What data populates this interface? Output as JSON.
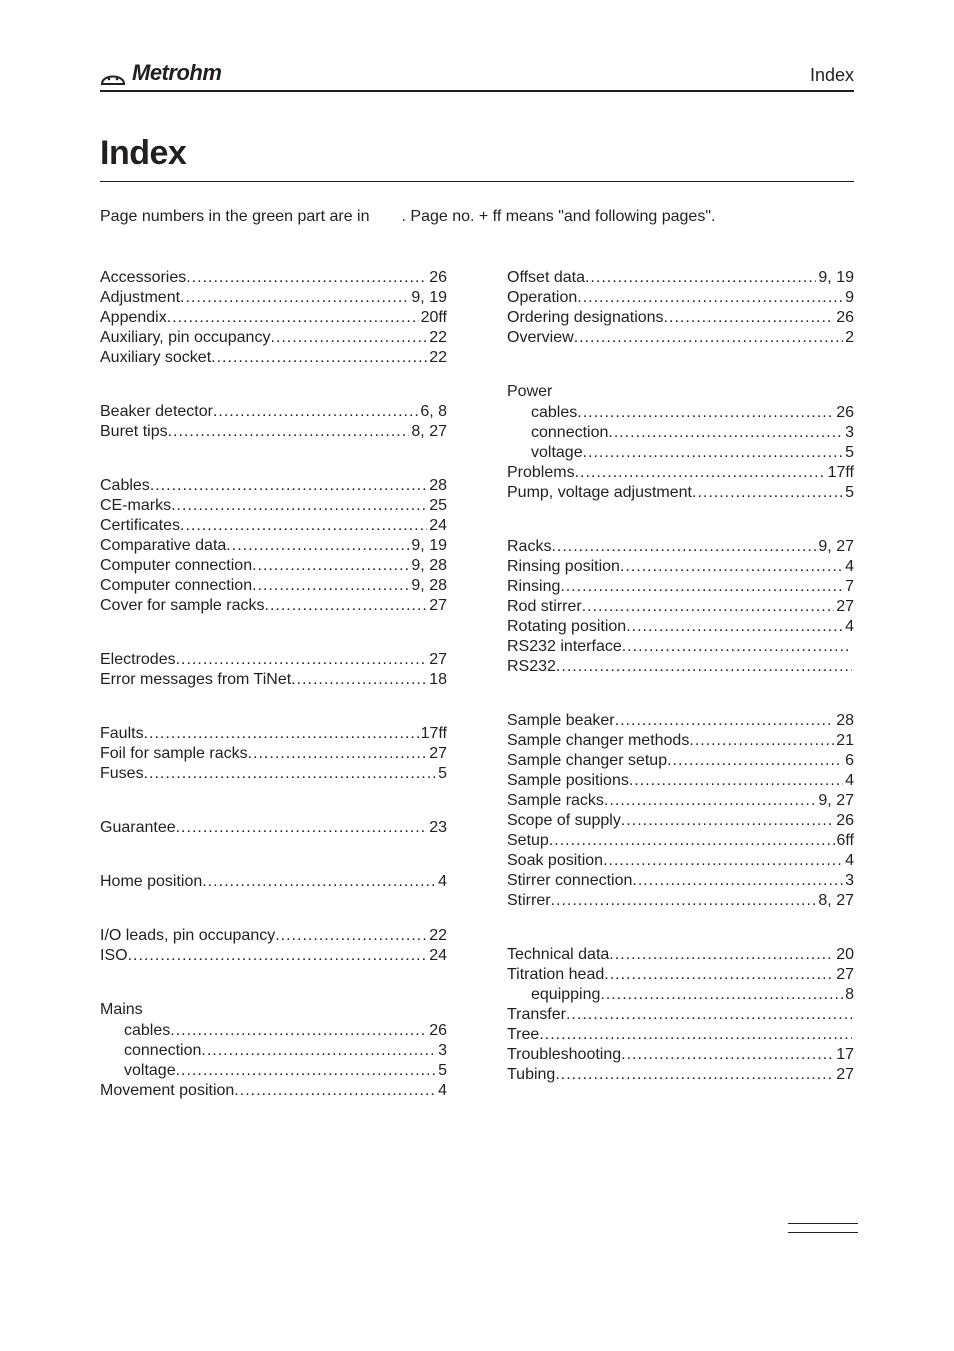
{
  "header": {
    "brand_name": "Metrohm",
    "section_label": "Index"
  },
  "title": "Index",
  "intro": {
    "left": "Page numbers in the green part are in",
    "right": ". Page no. + ff means \"and following pages\"."
  },
  "left_groups": [
    {
      "heading": null,
      "entries": [
        {
          "label": "Accessories",
          "pages": "26",
          "indent": false
        },
        {
          "label": "Adjustment",
          "pages": "9, 19",
          "indent": false
        },
        {
          "label": "Appendix",
          "pages": "20ff",
          "indent": false
        },
        {
          "label": "Auxiliary, pin occupancy",
          "pages": "22",
          "indent": false
        },
        {
          "label": "Auxiliary socket",
          "pages": "22",
          "indent": false
        }
      ]
    },
    {
      "heading": null,
      "entries": [
        {
          "label": "Beaker detector",
          "pages": "6, 8",
          "indent": false
        },
        {
          "label": "Buret tips",
          "pages": "8, 27",
          "indent": false
        }
      ]
    },
    {
      "heading": null,
      "entries": [
        {
          "label": "Cables",
          "pages": "28",
          "indent": false
        },
        {
          "label": "CE-marks",
          "pages": "25",
          "indent": false
        },
        {
          "label": "Certificates",
          "pages": "24",
          "indent": false
        },
        {
          "label": "Comparative data",
          "pages": "9, 19",
          "indent": false
        },
        {
          "label": "Computer connection",
          "pages": "9, 28",
          "indent": false
        },
        {
          "label": "Computer connection",
          "pages": "9, 28",
          "indent": false
        },
        {
          "label": "Cover for sample racks",
          "pages": "27",
          "indent": false
        }
      ]
    },
    {
      "heading": null,
      "entries": [
        {
          "label": "Electrodes",
          "pages": "27",
          "indent": false
        },
        {
          "label": "Error messages from TiNet",
          "pages": "18",
          "indent": false
        }
      ]
    },
    {
      "heading": null,
      "entries": [
        {
          "label": "Faults",
          "pages": "17ff",
          "indent": false
        },
        {
          "label": "Foil for sample racks",
          "pages": "27",
          "indent": false
        },
        {
          "label": "Fuses",
          "pages": "5",
          "indent": false
        }
      ]
    },
    {
      "heading": null,
      "entries": [
        {
          "label": "Guarantee",
          "pages": "23",
          "indent": false
        }
      ]
    },
    {
      "heading": null,
      "entries": [
        {
          "label": "Home position",
          "pages": "4",
          "indent": false
        }
      ]
    },
    {
      "heading": null,
      "entries": [
        {
          "label": "I/O leads, pin occupancy",
          "pages": "22",
          "indent": false
        },
        {
          "label": "ISO",
          "pages": "24",
          "indent": false
        }
      ]
    },
    {
      "heading": "Mains",
      "entries": [
        {
          "label": "cables",
          "pages": "26",
          "indent": true
        },
        {
          "label": "connection",
          "pages": "3",
          "indent": true
        },
        {
          "label": "voltage",
          "pages": "5",
          "indent": true
        },
        {
          "label": "Movement position",
          "pages": "4",
          "indent": false
        }
      ]
    }
  ],
  "right_groups": [
    {
      "heading": null,
      "entries": [
        {
          "label": "Offset data",
          "pages": "9, 19",
          "indent": false
        },
        {
          "label": "Operation",
          "pages": "9",
          "indent": false
        },
        {
          "label": "Ordering designations",
          "pages": "26",
          "indent": false
        },
        {
          "label": "Overview",
          "pages": "2",
          "indent": false
        }
      ]
    },
    {
      "heading": "Power",
      "entries": [
        {
          "label": "cables",
          "pages": "26",
          "indent": true
        },
        {
          "label": "connection",
          "pages": "3",
          "indent": true
        },
        {
          "label": "voltage",
          "pages": "5",
          "indent": true
        },
        {
          "label": "Problems",
          "pages": "17ff",
          "indent": false
        },
        {
          "label": "Pump, voltage adjustment",
          "pages": "5",
          "indent": false
        }
      ]
    },
    {
      "heading": null,
      "entries": [
        {
          "label": "Racks",
          "pages": "9, 27",
          "indent": false
        },
        {
          "label": "Rinsing position",
          "pages": "4",
          "indent": false
        },
        {
          "label": "Rinsing",
          "pages": "7",
          "indent": false
        },
        {
          "label": "Rod stirrer",
          "pages": "27",
          "indent": false
        },
        {
          "label": "Rotating position",
          "pages": "4",
          "indent": false
        },
        {
          "label": "RS232 interface",
          "pages": "",
          "indent": false
        },
        {
          "label": "RS232",
          "pages": "",
          "indent": false
        }
      ]
    },
    {
      "heading": null,
      "entries": [
        {
          "label": "Sample beaker",
          "pages": "28",
          "indent": false
        },
        {
          "label": "Sample changer methods",
          "pages": "21",
          "indent": false
        },
        {
          "label": "Sample changer setup",
          "pages": "6",
          "indent": false
        },
        {
          "label": "Sample positions",
          "pages": "4",
          "indent": false
        },
        {
          "label": "Sample racks",
          "pages": "9, 27",
          "indent": false
        },
        {
          "label": "Scope of supply",
          "pages": "26",
          "indent": false
        },
        {
          "label": "Setup",
          "pages": "6ff",
          "indent": false
        },
        {
          "label": "Soak position",
          "pages": "4",
          "indent": false
        },
        {
          "label": "Stirrer connection",
          "pages": "3",
          "indent": false
        },
        {
          "label": "Stirrer",
          "pages": "8, 27",
          "indent": false
        }
      ]
    },
    {
      "heading": null,
      "entries": [
        {
          "label": "Technical data",
          "pages": "20",
          "indent": false
        },
        {
          "label": "Titration head",
          "pages": "27",
          "indent": false
        },
        {
          "label": "equipping",
          "pages": "8",
          "indent": true
        },
        {
          "label": "Transfer",
          "pages": "",
          "indent": false
        },
        {
          "label": "Tree",
          "pages": "",
          "indent": false
        },
        {
          "label": "Troubleshooting",
          "pages": "17",
          "indent": false
        },
        {
          "label": "Tubing",
          "pages": "27",
          "indent": false
        }
      ]
    }
  ]
}
